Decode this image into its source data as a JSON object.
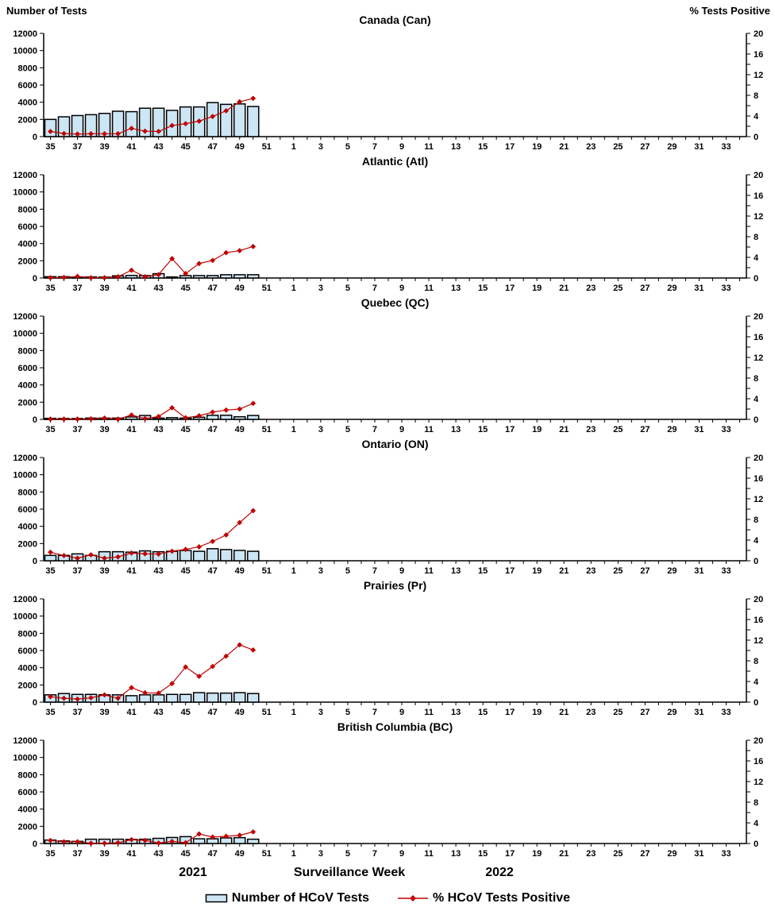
{
  "header": {
    "left_axis_title": "Number of Tests",
    "right_axis_title": "% Tests Positive"
  },
  "footer": {
    "year_left": "2021",
    "xlabel": "Surveillance Week",
    "year_right": "2022"
  },
  "legend": {
    "bar_label": "Number of HCoV Tests",
    "line_label": "% HCoV Tests Positive"
  },
  "colors": {
    "bar_fill": "#CDE6F5",
    "bar_stroke": "#000000",
    "line_color": "#C00000",
    "marker_color": "#C00000",
    "axis_color": "#000000"
  },
  "axis": {
    "left": {
      "title": "Number of Tests",
      "min": 0,
      "max": 12000,
      "step": 2000
    },
    "right": {
      "title": "% Tests Positive",
      "min": 0,
      "max": 20,
      "label_step": 4,
      "minor_step": 2
    },
    "x_total_weeks": 52,
    "x_first_week": 35,
    "x_tick_labels": [
      "35",
      "37",
      "39",
      "41",
      "43",
      "45",
      "47",
      "49",
      "51",
      "1",
      "3",
      "5",
      "7",
      "9",
      "11",
      "13",
      "15",
      "17",
      "19",
      "21",
      "23",
      "25",
      "27",
      "29",
      "31",
      "33"
    ]
  },
  "chart_data": [
    {
      "type": "bar+line",
      "title": "Canada (Can)",
      "weeks": [
        35,
        36,
        37,
        38,
        39,
        40,
        41,
        42,
        43,
        44,
        45,
        46,
        47,
        48,
        49,
        50
      ],
      "series": [
        {
          "name": "Number of HCoV Tests",
          "type": "bar",
          "values": [
            2000,
            2300,
            2450,
            2550,
            2700,
            2950,
            2900,
            3300,
            3300,
            3050,
            3450,
            3450,
            3950,
            3750,
            3800,
            3500
          ]
        },
        {
          "name": "% HCoV Tests Positive",
          "type": "line",
          "values": [
            1.0,
            0.6,
            0.5,
            0.55,
            0.55,
            0.55,
            1.6,
            1.05,
            1.0,
            2.15,
            2.5,
            3.0,
            3.9,
            5.0,
            6.75,
            7.4
          ]
        }
      ],
      "ylim_left": [
        0,
        12000
      ],
      "ylim_right": [
        0,
        20
      ]
    },
    {
      "type": "bar+line",
      "title": "Atlantic (Atl)",
      "weeks": [
        35,
        36,
        37,
        38,
        39,
        40,
        41,
        42,
        43,
        44,
        45,
        46,
        47,
        48,
        49,
        50
      ],
      "series": [
        {
          "name": "Number of HCoV Tests",
          "type": "bar",
          "values": [
            150,
            150,
            120,
            120,
            100,
            250,
            300,
            280,
            500,
            120,
            280,
            280,
            280,
            380,
            380,
            380
          ]
        },
        {
          "name": "% HCoV Tests Positive",
          "type": "line",
          "values": [
            0.05,
            0.1,
            0.3,
            0.05,
            0.05,
            0.25,
            1.5,
            0.25,
            0.65,
            3.75,
            0.85,
            2.8,
            3.4,
            4.9,
            5.3,
            6.1
          ]
        }
      ],
      "ylim_left": [
        0,
        12000
      ],
      "ylim_right": [
        0,
        20
      ]
    },
    {
      "type": "bar+line",
      "title": "Quebec (QC)",
      "weeks": [
        35,
        36,
        37,
        38,
        39,
        40,
        41,
        42,
        43,
        44,
        45,
        46,
        47,
        48,
        49,
        50
      ],
      "series": [
        {
          "name": "Number of HCoV Tests",
          "type": "bar",
          "values": [
            120,
            100,
            100,
            150,
            150,
            150,
            280,
            450,
            150,
            200,
            150,
            250,
            480,
            480,
            300,
            450
          ]
        },
        {
          "name": "% HCoV Tests Positive",
          "type": "line",
          "values": [
            0.05,
            0.05,
            0.05,
            0.1,
            0.25,
            0.05,
            0.85,
            0.15,
            0.55,
            2.25,
            0.3,
            0.7,
            1.4,
            1.8,
            2.0,
            3.1
          ]
        }
      ],
      "ylim_left": [
        0,
        12000
      ],
      "ylim_right": [
        0,
        20
      ]
    },
    {
      "type": "bar+line",
      "title": "Ontario (ON)",
      "weeks": [
        35,
        36,
        37,
        38,
        39,
        40,
        41,
        42,
        43,
        44,
        45,
        46,
        47,
        48,
        49,
        50
      ],
      "series": [
        {
          "name": "Number of HCoV Tests",
          "type": "bar",
          "values": [
            620,
            620,
            800,
            620,
            1050,
            1050,
            1000,
            1150,
            1050,
            1100,
            1200,
            1100,
            1400,
            1300,
            1200,
            1100
          ]
        },
        {
          "name": "% HCoV Tests Positive",
          "type": "line",
          "values": [
            1.65,
            1.0,
            0.5,
            1.15,
            0.5,
            0.75,
            1.5,
            1.35,
            1.3,
            1.85,
            2.2,
            2.7,
            3.75,
            5.0,
            7.4,
            9.7
          ]
        }
      ],
      "ylim_left": [
        0,
        12000
      ],
      "ylim_right": [
        0,
        20
      ]
    },
    {
      "type": "bar+line",
      "title": "Prairies (Pr)",
      "weeks": [
        35,
        36,
        37,
        38,
        39,
        40,
        41,
        42,
        43,
        44,
        45,
        46,
        47,
        48,
        49,
        50
      ],
      "series": [
        {
          "name": "Number of HCoV Tests",
          "type": "bar",
          "values": [
            850,
            1000,
            900,
            900,
            850,
            850,
            750,
            850,
            850,
            900,
            900,
            1100,
            1050,
            1050,
            1100,
            1000
          ]
        },
        {
          "name": "% HCoV Tests Positive",
          "type": "line",
          "values": [
            1.05,
            0.75,
            0.6,
            0.85,
            1.4,
            0.75,
            2.8,
            1.8,
            1.75,
            3.6,
            6.8,
            5.0,
            6.9,
            8.9,
            11.1,
            10.1
          ]
        }
      ],
      "ylim_left": [
        0,
        12000
      ],
      "ylim_right": [
        0,
        20
      ]
    },
    {
      "type": "bar+line",
      "title": "British Columbia (BC)",
      "weeks": [
        35,
        36,
        37,
        38,
        39,
        40,
        41,
        42,
        43,
        44,
        45,
        46,
        47,
        48,
        49,
        50
      ],
      "series": [
        {
          "name": "Number of HCoV Tests",
          "type": "bar",
          "values": [
            400,
            300,
            250,
            500,
            500,
            500,
            480,
            500,
            600,
            700,
            800,
            550,
            550,
            650,
            680,
            500
          ]
        },
        {
          "name": "% HCoV Tests Positive",
          "type": "line",
          "values": [
            0.6,
            0.35,
            0.35,
            0.05,
            0.05,
            0.15,
            0.75,
            0.6,
            0.1,
            0.4,
            0.15,
            1.85,
            1.25,
            1.4,
            1.6,
            2.25
          ]
        }
      ],
      "ylim_left": [
        0,
        12000
      ],
      "ylim_right": [
        0,
        20
      ]
    }
  ]
}
